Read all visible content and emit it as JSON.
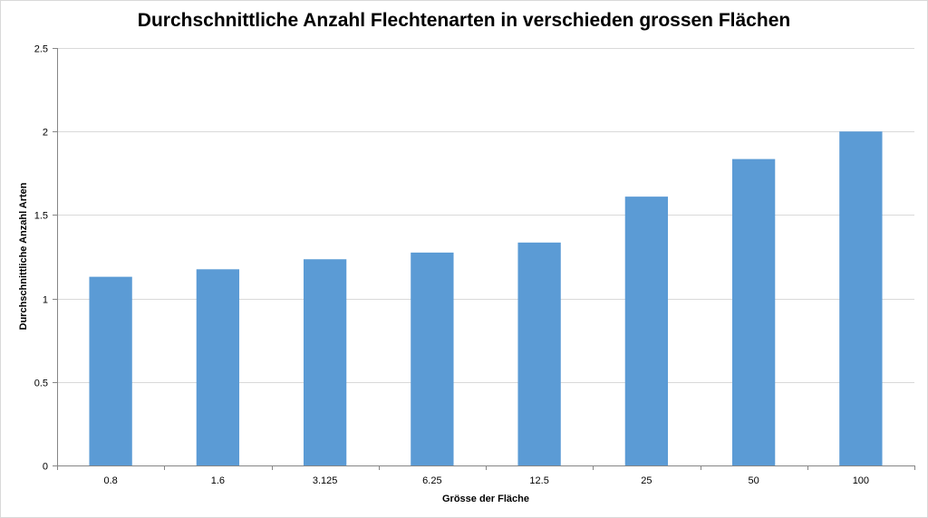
{
  "chart_data": {
    "type": "bar",
    "title": "Durchschnittliche Anzahl Flechtenarten in verschieden grossen Flächen",
    "xlabel": "Grösse der Fläche",
    "ylabel": "Durchschnittliche Anzahl Arten",
    "categories": [
      "0.8",
      "1.6",
      "3.125",
      "6.25",
      "12.5",
      "25",
      "50",
      "100"
    ],
    "values": [
      1.13,
      1.175,
      1.235,
      1.275,
      1.335,
      1.61,
      1.835,
      2.0
    ],
    "ylim": [
      0,
      2.5
    ],
    "yticks": [
      "0",
      "0.5",
      "1",
      "1.5",
      "2",
      "2.5"
    ],
    "grid": true,
    "legend": "none",
    "bar_color": "#5b9bd5",
    "grid_color": "#d9d9d9",
    "axis_color": "#868686"
  }
}
